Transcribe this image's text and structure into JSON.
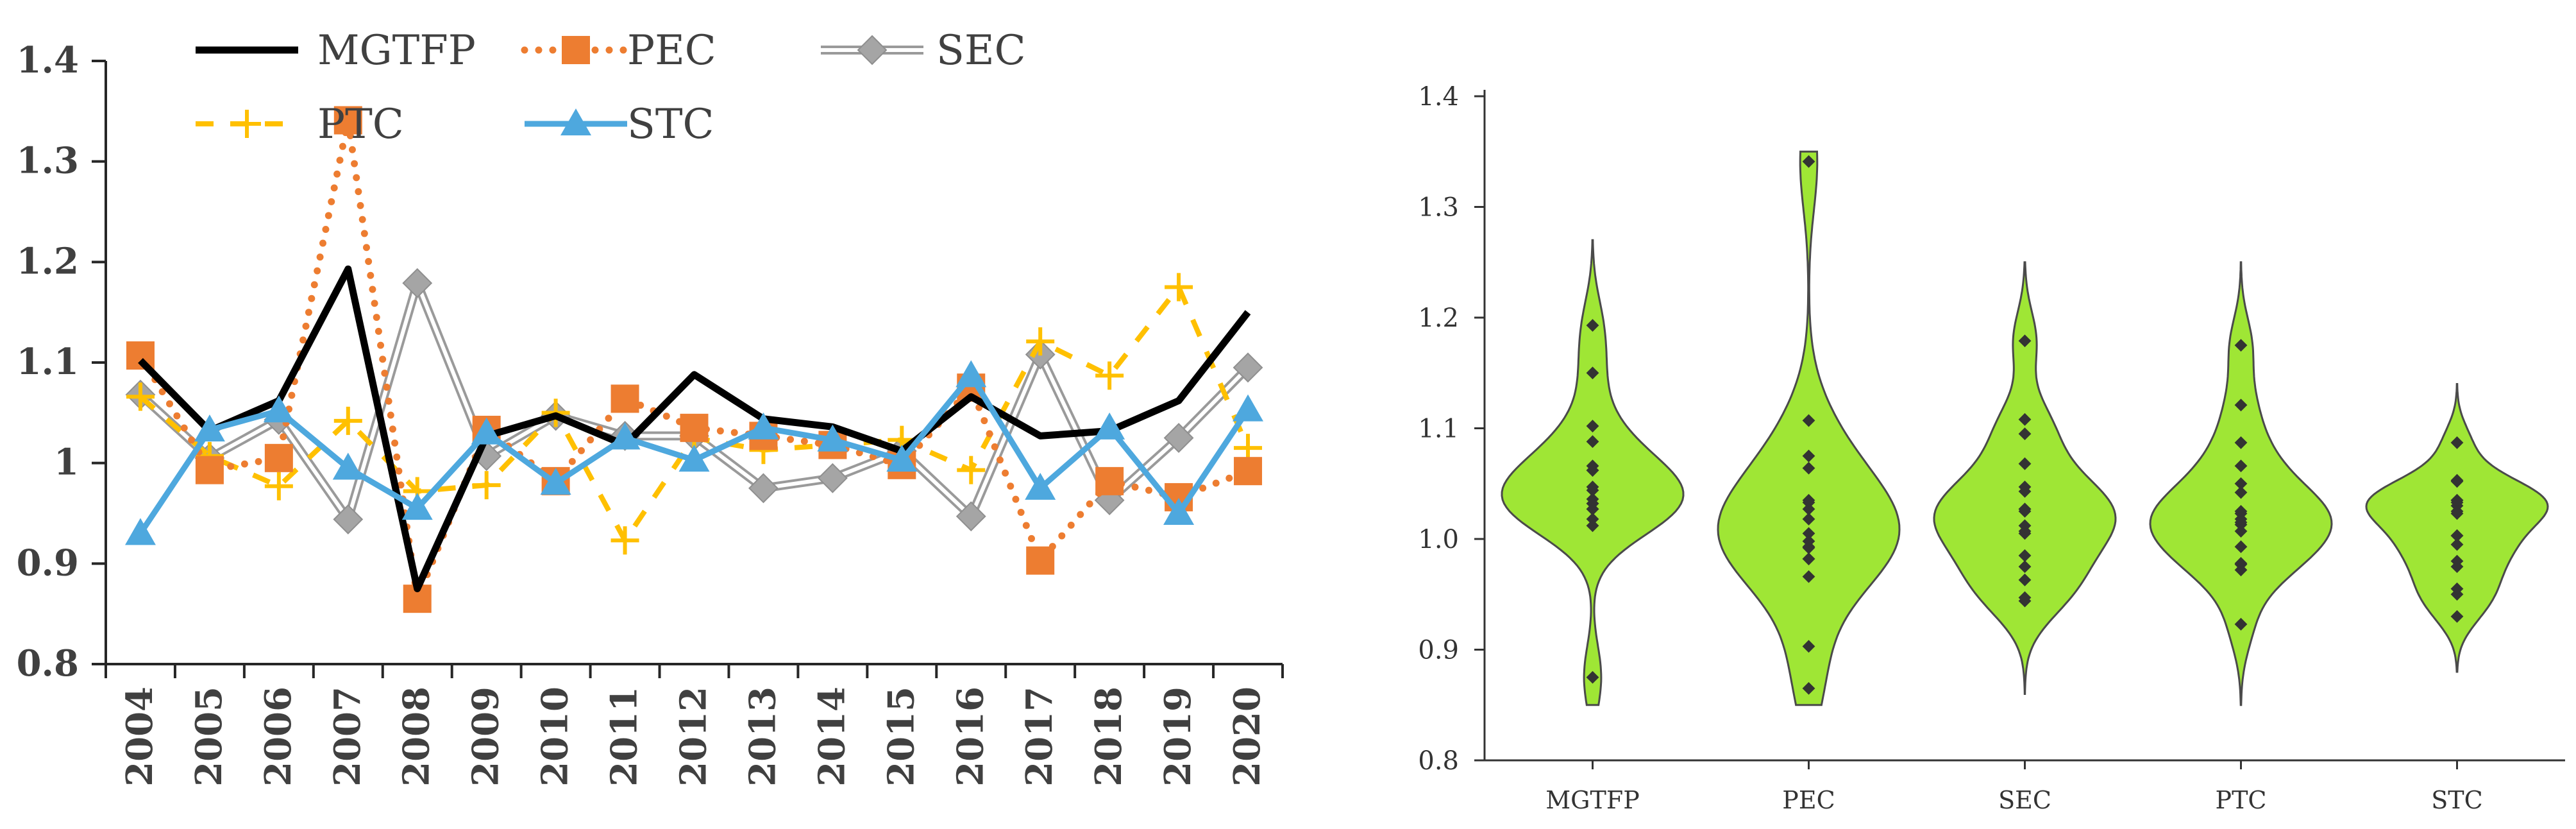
{
  "chart_data": [
    {
      "type": "line",
      "title": "",
      "xlabel": "",
      "ylabel": "",
      "ylim": [
        0.8,
        1.4
      ],
      "yticks": [
        "0.8",
        "0.9",
        "1",
        "1.1",
        "1.2",
        "1.3",
        "1.4"
      ],
      "categories": [
        "2004",
        "2005",
        "2006",
        "2007",
        "2008",
        "2009",
        "2010",
        "2011",
        "2012",
        "2013",
        "2014",
        "2015",
        "2016",
        "2017",
        "2018",
        "2019",
        "2020"
      ],
      "legend_position": "top",
      "series": [
        {
          "name": "MGTFP",
          "color": "#000000",
          "style": "solid",
          "marker": "none",
          "values": [
            1.102,
            1.032,
            1.062,
            1.193,
            0.875,
            1.027,
            1.047,
            1.018,
            1.088,
            1.044,
            1.036,
            1.012,
            1.066,
            1.027,
            1.032,
            1.062,
            1.15
          ]
        },
        {
          "name": "PEC",
          "color": "#ED7D31",
          "style": "dotted",
          "marker": "square",
          "values": [
            1.107,
            0.993,
            1.005,
            1.341,
            0.865,
            1.033,
            0.982,
            1.064,
            1.035,
            1.027,
            1.018,
            0.998,
            1.075,
            0.903,
            0.982,
            0.966,
            0.992
          ]
        },
        {
          "name": "SEC",
          "color": "#A5A5A5",
          "style": "double",
          "marker": "diamond",
          "values": [
            1.068,
            1.005,
            1.043,
            0.944,
            1.179,
            1.007,
            1.047,
            1.027,
            1.027,
            0.975,
            0.985,
            1.012,
            0.947,
            1.108,
            0.963,
            1.025,
            1.095
          ]
        },
        {
          "name": "PTC",
          "color": "#FFC000",
          "style": "dashed",
          "marker": "plus",
          "values": [
            1.066,
            1.007,
            0.977,
            1.042,
            0.972,
            0.978,
            1.05,
            0.923,
            1.025,
            1.013,
            1.018,
            1.023,
            0.993,
            1.121,
            1.087,
            1.175,
            1.015
          ]
        },
        {
          "name": "STC",
          "color": "#4EA8DE",
          "style": "solid",
          "marker": "triangle",
          "values": [
            0.93,
            1.033,
            1.052,
            0.995,
            0.955,
            1.03,
            0.98,
            1.025,
            1.003,
            1.035,
            1.023,
            1.003,
            1.087,
            0.975,
            1.035,
            0.95,
            1.053
          ]
        }
      ]
    },
    {
      "type": "violin",
      "title": "",
      "xlabel": "",
      "ylabel": "",
      "ylim": [
        0.8,
        1.4
      ],
      "yticks": [
        "0.8",
        "0.9",
        "1.0",
        "1.1",
        "1.2",
        "1.3",
        "1.4"
      ],
      "fill_color": "#9FE635",
      "point_color": "#333333",
      "violins": [
        {
          "name": "MGTFP",
          "range": [
            0.85,
            1.27
          ],
          "points": [
            0.875,
            1.012,
            1.018,
            1.027,
            1.027,
            1.032,
            1.032,
            1.036,
            1.044,
            1.047,
            1.062,
            1.062,
            1.066,
            1.088,
            1.102,
            1.15,
            1.193
          ]
        },
        {
          "name": "PEC",
          "range": [
            0.85,
            1.35
          ],
          "points": [
            0.865,
            0.903,
            0.966,
            0.982,
            0.982,
            0.992,
            0.993,
            0.998,
            1.005,
            1.018,
            1.027,
            1.033,
            1.035,
            1.064,
            1.075,
            1.107,
            1.341
          ]
        },
        {
          "name": "SEC",
          "range": [
            0.86,
            1.25
          ],
          "points": [
            0.944,
            0.947,
            0.963,
            0.975,
            0.985,
            1.005,
            1.007,
            1.012,
            1.025,
            1.027,
            1.027,
            1.043,
            1.047,
            1.068,
            1.095,
            1.108,
            1.179
          ]
        },
        {
          "name": "PTC",
          "range": [
            0.85,
            1.25
          ],
          "points": [
            0.923,
            0.972,
            0.977,
            0.978,
            0.993,
            1.007,
            1.013,
            1.015,
            1.018,
            1.023,
            1.025,
            1.042,
            1.05,
            1.066,
            1.087,
            1.121,
            1.175
          ]
        },
        {
          "name": "STC",
          "range": [
            0.88,
            1.14
          ],
          "points": [
            0.93,
            0.95,
            0.955,
            0.975,
            0.98,
            0.995,
            1.003,
            1.003,
            1.023,
            1.025,
            1.03,
            1.033,
            1.035,
            1.035,
            1.052,
            1.053,
            1.087
          ]
        }
      ]
    }
  ]
}
